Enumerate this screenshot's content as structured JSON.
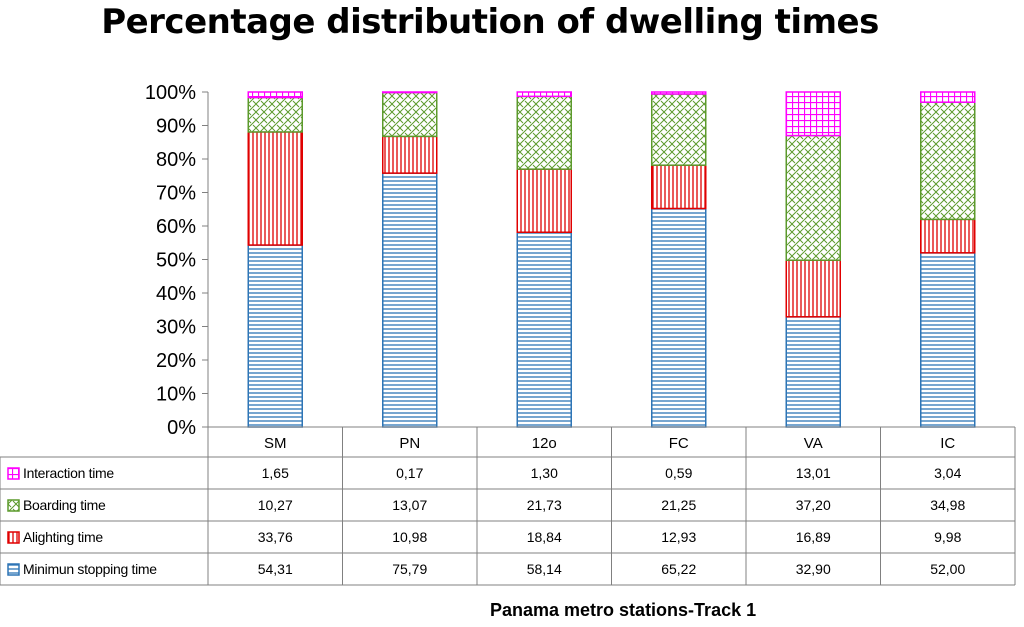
{
  "chart_data": {
    "type": "bar",
    "stacked": true,
    "percent_stacked": true,
    "title": "Percentage distribution of dwelling times",
    "xlabel": "Panama metro stations-Track  1",
    "ylabel": "",
    "categories": [
      "SM",
      "PN",
      "12o",
      "FC",
      "VA",
      "IC"
    ],
    "y_ticks": [
      "0%",
      "10%",
      "20%",
      "30%",
      "40%",
      "50%",
      "60%",
      "70%",
      "80%",
      "90%",
      "100%"
    ],
    "ylim": [
      0,
      100
    ],
    "grid": false,
    "legend": "in-data-table",
    "series": [
      {
        "name": "Minimun stopping time",
        "color": "#2e75b6",
        "pattern": "horizontal-lines",
        "values": [
          54.31,
          75.79,
          58.14,
          65.22,
          32.9,
          52.0
        ],
        "labels": [
          "54,31",
          "75,79",
          "58,14",
          "65,22",
          "32,90",
          "52,00"
        ]
      },
      {
        "name": "Alighting time",
        "color": "#e00000",
        "pattern": "vertical-lines",
        "values": [
          33.76,
          10.98,
          18.84,
          12.93,
          16.89,
          9.98
        ],
        "labels": [
          "33,76",
          "10,98",
          "18,84",
          "12,93",
          "16,89",
          "9,98"
        ]
      },
      {
        "name": "Boarding time",
        "color": "#5c9a2c",
        "pattern": "diagonal-weave",
        "values": [
          10.27,
          13.07,
          21.73,
          21.25,
          37.2,
          34.98
        ],
        "labels": [
          "10,27",
          "13,07",
          "21,73",
          "21,25",
          "37,20",
          "34,98"
        ]
      },
      {
        "name": "Interaction time",
        "color": "#ff00ff",
        "pattern": "grid",
        "values": [
          1.65,
          0.17,
          1.3,
          0.59,
          13.01,
          3.04
        ],
        "labels": [
          "1,65",
          "0,17",
          "1,30",
          "0,59",
          "13,01",
          "3,04"
        ]
      }
    ],
    "table_row_order": [
      "Interaction time",
      "Boarding time",
      "Alighting time",
      "Minimun stopping time"
    ]
  }
}
